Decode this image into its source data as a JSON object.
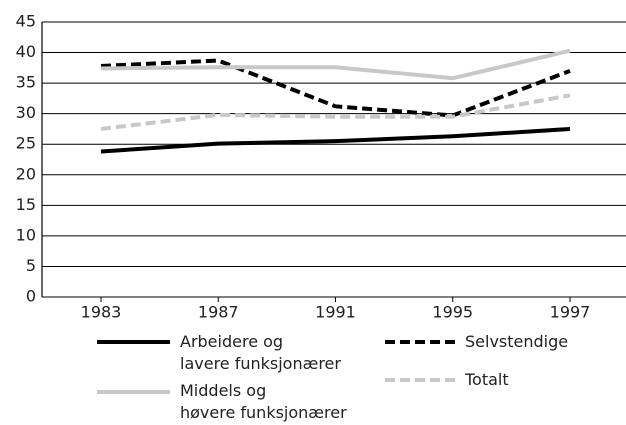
{
  "chart_data": {
    "type": "line",
    "categories": [
      "1983",
      "1987",
      "1991",
      "1995",
      "1997"
    ],
    "series": [
      {
        "name": "Arbeidere og\nlavere funksjonærer",
        "color": "#000000",
        "dash": false,
        "values": [
          23.8,
          25.1,
          25.5,
          26.3,
          27.5
        ]
      },
      {
        "name": "Selvstendige",
        "color": "#000000",
        "dash": true,
        "values": [
          37.8,
          38.7,
          31.2,
          29.7,
          37
        ]
      },
      {
        "name": "Middels og\nhøvere funksjonærer",
        "color": "#c8c8c8",
        "dash": false,
        "values": [
          37.4,
          37.6,
          37.6,
          35.8,
          40.3
        ]
      },
      {
        "name": "Totalt",
        "color": "#c8c8c8",
        "dash": true,
        "values": [
          27.5,
          29.8,
          29.5,
          29.5,
          33
        ]
      }
    ],
    "ylim": [
      0,
      45
    ],
    "yticks": [
      0,
      5,
      10,
      15,
      20,
      25,
      30,
      35,
      40,
      45
    ],
    "grid": true
  }
}
